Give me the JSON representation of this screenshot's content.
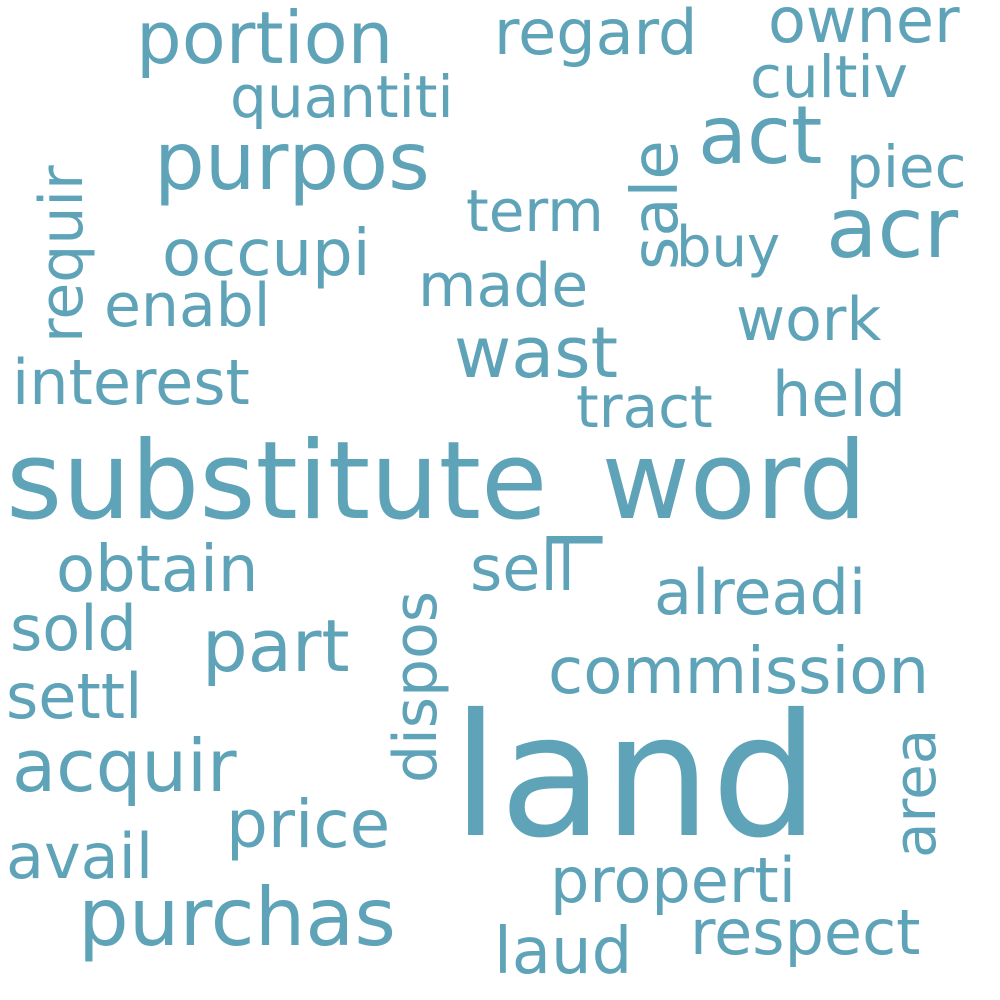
{
  "theme": {
    "word_color": "#5fa3b8",
    "background": "#ffffff"
  },
  "words": {
    "substitute_word": "substitute_word",
    "land": "land",
    "purchas": "purchas",
    "purpos": "purpos",
    "portion": "portion",
    "regard": "regard",
    "owner": "owner",
    "cultiv": "cultiv",
    "quantiti": "quantiti",
    "act": "act",
    "piec": "piec",
    "acr": "acr",
    "requir": "requir",
    "sale": "sale",
    "term": "term",
    "buy": "buy",
    "occupi": "occupi",
    "made": "made",
    "enabl": "enabl",
    "work": "work",
    "wast": "wast",
    "interest": "interest",
    "tract": "tract",
    "held": "held",
    "obtain": "obtain",
    "dispos": "dispos",
    "sell": "sell",
    "alreadi": "alreadi",
    "sold": "sold",
    "part": "part",
    "commission": "commission",
    "settl": "settl",
    "acquir": "acquir",
    "area": "area",
    "price": "price",
    "avail": "avail",
    "properti": "properti",
    "respect": "respect",
    "laud": "laud"
  }
}
